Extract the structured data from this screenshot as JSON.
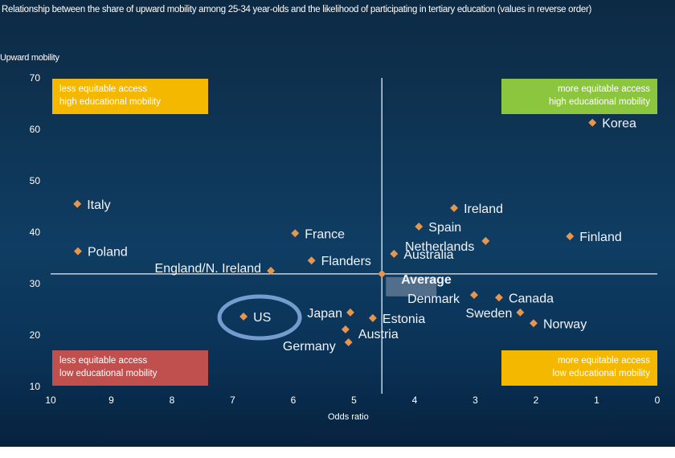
{
  "chart_data": {
    "type": "scatter",
    "title": "Relationship between the share of upward mobility among 25-34 year-olds and the likelihood of participating in tertiary education (values in reverse order)",
    "xlabel": "Odds ratio",
    "ylabel": "Upward mobility",
    "xlim": [
      10,
      0
    ],
    "ylim": [
      10,
      70
    ],
    "x_reversed": true,
    "xticks": [
      10,
      9,
      8,
      7,
      6,
      5,
      4,
      3,
      2,
      1,
      0
    ],
    "yticks": [
      70,
      60,
      50,
      40,
      30,
      20,
      10
    ],
    "grid": false,
    "reference_lines": {
      "x": 4.54,
      "y": 31.9
    },
    "highlighted": "US",
    "marker_color": "#e8964e",
    "points": [
      {
        "label": "Korea",
        "x": 1.07,
        "y": 61.3
      },
      {
        "label": "Italy",
        "x": 9.56,
        "y": 45.5
      },
      {
        "label": "Poland",
        "x": 9.55,
        "y": 36.3
      },
      {
        "label": "France",
        "x": 5.97,
        "y": 39.8
      },
      {
        "label": "Flanders",
        "x": 5.7,
        "y": 34.5
      },
      {
        "label": "England/N. Ireland",
        "x": 6.37,
        "y": 32.5
      },
      {
        "label": "Ireland",
        "x": 3.35,
        "y": 44.7
      },
      {
        "label": "Spain",
        "x": 3.93,
        "y": 41.1
      },
      {
        "label": "Netherlands",
        "x": 2.83,
        "y": 38.3
      },
      {
        "label": "Finland",
        "x": 1.44,
        "y": 39.2
      },
      {
        "label": "Australia",
        "x": 4.34,
        "y": 35.8
      },
      {
        "label": "Average",
        "x": 4.54,
        "y": 31.9
      },
      {
        "label": "Denmark",
        "x": 3.02,
        "y": 27.8
      },
      {
        "label": "Canada",
        "x": 2.61,
        "y": 27.3
      },
      {
        "label": "Sweden",
        "x": 2.26,
        "y": 24.4
      },
      {
        "label": "Norway",
        "x": 2.04,
        "y": 22.3
      },
      {
        "label": "US",
        "x": 6.82,
        "y": 23.6
      },
      {
        "label": "Japan",
        "x": 5.06,
        "y": 24.4
      },
      {
        "label": "Estonia",
        "x": 4.69,
        "y": 23.3
      },
      {
        "label": "Austria",
        "x": 5.14,
        "y": 21.1
      },
      {
        "label": "Germany",
        "x": 5.09,
        "y": 18.6
      }
    ],
    "quadrants": [
      {
        "line1": "less equitable access",
        "line2": "high educational mobility",
        "color": "#f5b800"
      },
      {
        "line1": "more equitable access",
        "line2": "high educational mobility",
        "color": "#8cc63f"
      },
      {
        "line1": "less equitable access",
        "line2": "low educational mobility",
        "color": "#c0504d"
      },
      {
        "line1": "more equitable access",
        "line2": "low educational mobility",
        "color": "#f5b800"
      }
    ]
  }
}
